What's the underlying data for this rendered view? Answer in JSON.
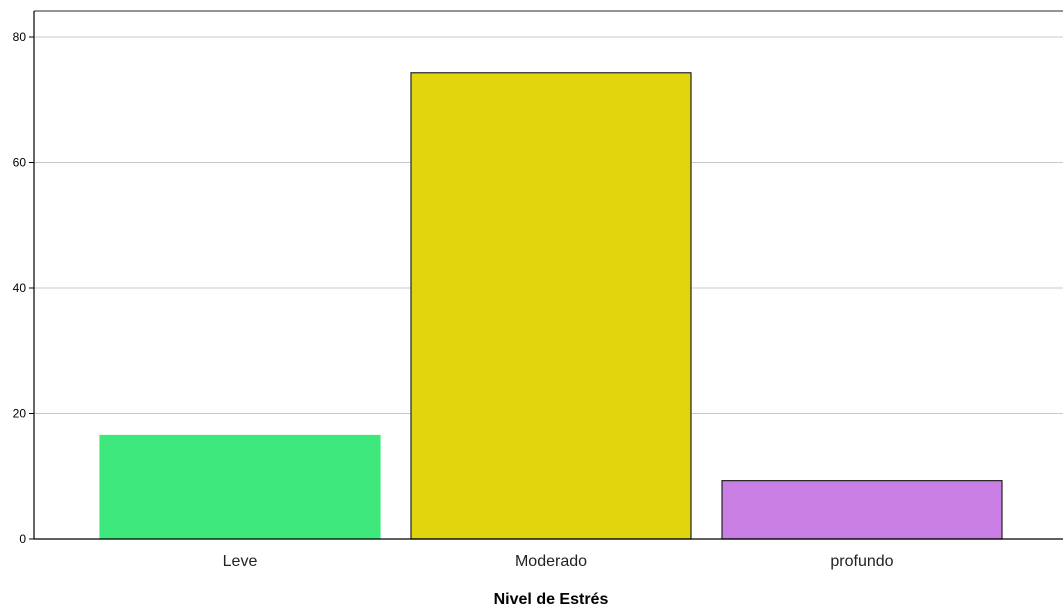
{
  "chart_data": {
    "type": "bar",
    "categories": [
      "Leve",
      "Moderado",
      "profundo"
    ],
    "values": [
      16.5,
      74.3,
      9.3
    ],
    "colors": [
      "#3fe87c",
      "#e1d60d",
      "#c87ee3"
    ],
    "bar_outline": "#222222",
    "xlabel": "Nivel de Estrés",
    "ylabel": "",
    "ylim": [
      0,
      80
    ],
    "yticks": [
      0,
      20,
      40,
      60,
      80
    ],
    "grid": true,
    "grid_color": "#c8c8c8",
    "legend": "none"
  }
}
